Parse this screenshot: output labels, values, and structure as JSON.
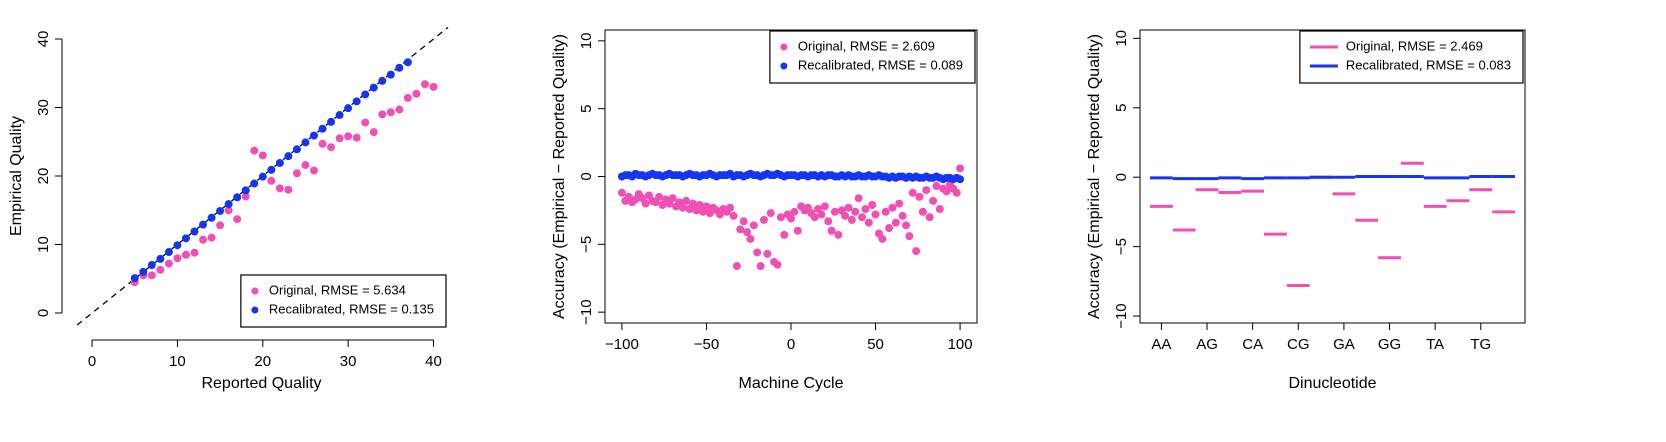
{
  "chart_data": [
    {
      "type": "scatter",
      "xlabel": "Reported Quality",
      "ylabel": "Empirical Quality",
      "xlim": [
        -2,
        41.7
      ],
      "ylim": [
        -1.75,
        41.75
      ],
      "xticks": [
        0,
        10,
        20,
        30,
        40
      ],
      "yticks": [
        0,
        10,
        20,
        30,
        40
      ],
      "diagonal": true,
      "legend": "bottomright",
      "series": [
        {
          "name": "Original, RMSE = 5.634",
          "color": "#f04fb4",
          "x": [
            5,
            6,
            7,
            8,
            9,
            10,
            11,
            12,
            13,
            14,
            15,
            16,
            17,
            18,
            19,
            20,
            21,
            22,
            23,
            24,
            25,
            26,
            27,
            28,
            29,
            30,
            31,
            32,
            33,
            34,
            35,
            36,
            37,
            38,
            39,
            40
          ],
          "values": [
            4.5,
            5.5,
            5.5,
            6.3,
            7.2,
            8,
            8.5,
            8.8,
            10.7,
            11,
            12.8,
            15,
            13.7,
            17,
            23.7,
            23,
            19.3,
            18.2,
            18,
            20.4,
            21.6,
            20.8,
            24.7,
            24.2,
            25.5,
            25.8,
            25.6,
            27.8,
            26.4,
            29,
            29.3,
            29.7,
            31.4,
            32,
            33.4,
            33
          ]
        },
        {
          "name": "Recalibrated, RMSE = 0.135",
          "color": "#1535f0",
          "x": [
            5,
            6,
            7,
            8,
            9,
            10,
            11,
            12,
            13,
            14,
            15,
            16,
            17,
            18,
            19,
            20,
            21,
            22,
            23,
            24,
            25,
            26,
            27,
            28,
            29,
            30,
            31,
            32,
            33,
            34,
            35,
            36,
            37
          ],
          "values": [
            5.1,
            6,
            7,
            7.9,
            8.9,
            9.9,
            10.9,
            11.9,
            12.9,
            13.9,
            14.9,
            15.9,
            16.9,
            17.9,
            18.9,
            19.9,
            20.9,
            21.9,
            22.9,
            23.9,
            24.9,
            25.9,
            26.9,
            27.9,
            28.9,
            29.9,
            30.9,
            31.9,
            32.9,
            33.9,
            34.8,
            35.8,
            36.6
          ]
        }
      ]
    },
    {
      "type": "scatter",
      "xlabel": "Machine Cycle",
      "ylabel": "Accuracy (Empirical − Reported Quality)",
      "xlim": [
        -110,
        110
      ],
      "ylim": [
        -10.8,
        10.8
      ],
      "xticks": [
        {
          "value": -100,
          "label": "−100"
        },
        {
          "value": -50,
          "label": "−50"
        },
        0,
        50,
        100
      ],
      "yticks": [
        {
          "value": -10,
          "label": "−10"
        },
        {
          "value": -5,
          "label": "−5"
        },
        0,
        5,
        10
      ],
      "legend": "topright",
      "x": [
        -100,
        -98,
        -96,
        -94,
        -92,
        -90,
        -88,
        -86,
        -84,
        -82,
        -80,
        -78,
        -76,
        -74,
        -72,
        -70,
        -68,
        -66,
        -64,
        -62,
        -60,
        -58,
        -56,
        -54,
        -52,
        -50,
        -48,
        -46,
        -44,
        -42,
        -40,
        -38,
        -36,
        -34,
        -32,
        -30,
        -28,
        -26,
        -24,
        -22,
        -20,
        -18,
        -16,
        -14,
        -12,
        -10,
        -8,
        -6,
        -4,
        -2,
        0,
        2,
        4,
        6,
        8,
        10,
        12,
        14,
        16,
        18,
        20,
        22,
        24,
        26,
        28,
        30,
        32,
        34,
        36,
        38,
        40,
        42,
        44,
        46,
        48,
        50,
        52,
        54,
        56,
        58,
        60,
        62,
        64,
        66,
        68,
        70,
        72,
        74,
        76,
        78,
        80,
        82,
        84,
        86,
        88,
        90,
        92,
        94,
        96,
        98,
        100
      ],
      "series": [
        {
          "name": "Original, RMSE = 2.609",
          "color": "#f04fb4",
          "values": [
            -1.2,
            -1.8,
            -1.5,
            -1.9,
            -1.7,
            -1.3,
            -1.6,
            -2.0,
            -1.4,
            -1.8,
            -1.9,
            -1.5,
            -2.1,
            -1.7,
            -2.0,
            -1.6,
            -2.2,
            -1.9,
            -2.3,
            -1.8,
            -2.4,
            -2.0,
            -2.5,
            -2.1,
            -2.6,
            -2.2,
            -2.7,
            -2.3,
            -2.5,
            -2.8,
            -2.4,
            -2.6,
            -2.3,
            -2.9,
            -6.6,
            -3.9,
            -3.3,
            -4.1,
            -4.6,
            -3.6,
            -5.6,
            -6.6,
            -3.2,
            -5.7,
            -2.7,
            -6.3,
            -6.5,
            -3.0,
            -4.3,
            -2.8,
            -3.1,
            -2.6,
            -4.0,
            -2.2,
            -2.5,
            -2.3,
            -2.7,
            -3.0,
            -2.4,
            -2.8,
            -2.2,
            -3.3,
            -4.0,
            -2.6,
            -4.3,
            -2.5,
            -2.9,
            -2.3,
            -3.2,
            -2.6,
            -1.6,
            -3.0,
            -2.4,
            -3.4,
            -2.1,
            -2.8,
            -4.2,
            -4.6,
            -2.6,
            -3.8,
            -2.3,
            -3.4,
            -2.0,
            -2.9,
            -3.6,
            -4.4,
            -1.2,
            -5.5,
            -1.5,
            -2.6,
            -1.0,
            -3.0,
            -1.8,
            -0.7,
            -2.4,
            -0.9,
            -1.1,
            -0.6,
            -0.9,
            -1.2,
            0.6
          ]
        },
        {
          "name": "Recalibrated, RMSE = 0.089",
          "color": "#1535f0",
          "values": [
            0.0,
            0.1,
            0.1,
            0.0,
            0.2,
            0.1,
            0.1,
            0.0,
            0.1,
            0.2,
            0.1,
            0.1,
            0.0,
            0.1,
            0.2,
            0.1,
            0.1,
            0.1,
            0.0,
            0.1,
            0.2,
            0.1,
            0.1,
            0.0,
            0.1,
            0.1,
            0.2,
            0.1,
            0.0,
            0.1,
            0.1,
            0.1,
            0.2,
            0.0,
            0.1,
            0.1,
            0.0,
            0.1,
            0.2,
            0.1,
            0.1,
            0.0,
            0.1,
            0.2,
            0.1,
            0.1,
            0.2,
            0.1,
            0.0,
            0.1,
            0.1,
            0.1,
            0.0,
            0.1,
            0.1,
            0.0,
            0.1,
            0.1,
            0.0,
            0.1,
            0.0,
            0.1,
            0.1,
            0.0,
            0.0,
            0.1,
            0.0,
            0.1,
            0.0,
            0.0,
            0.1,
            0.0,
            0.0,
            0.1,
            0.0,
            0.0,
            0.1,
            0.0,
            0.0,
            -0.1,
            0.0,
            -0.1,
            0.0,
            0.0,
            -0.1,
            0.0,
            -0.1,
            0.0,
            -0.1,
            -0.1,
            0.0,
            -0.1,
            -0.1,
            0.0,
            -0.1,
            -0.2,
            -0.1,
            -0.1,
            -0.2,
            -0.1,
            -0.2
          ]
        }
      ]
    },
    {
      "type": "segment",
      "xlabel": "Dinucleotide",
      "ylabel": "Accuracy (Empirical − Reported Quality)",
      "ylim": [
        -10.5,
        10.6
      ],
      "yticks": [
        {
          "value": -10,
          "label": "−10"
        },
        {
          "value": -5,
          "label": "−5"
        },
        0,
        5,
        10
      ],
      "legend": "topright",
      "categories": [
        "AA",
        null,
        "AG",
        null,
        "CA",
        null,
        "CG",
        null,
        "GA",
        null,
        "GG",
        null,
        "TA",
        null,
        "TG",
        null
      ],
      "series": [
        {
          "name": "Original, RMSE = 2.469",
          "color": "#f04fb4",
          "values": [
            -2.1,
            -3.8,
            -0.9,
            -1.1,
            -1.0,
            -4.1,
            -7.8,
            0.0,
            -1.2,
            -3.1,
            -5.8,
            1.0,
            -2.1,
            -1.7,
            -0.9,
            -2.5
          ]
        },
        {
          "name": "Recalibrated, RMSE = 0.083",
          "color": "#1535f0",
          "values": [
            -0.05,
            -0.1,
            -0.1,
            -0.05,
            -0.1,
            -0.05,
            -0.05,
            0.0,
            0.0,
            0.05,
            0.05,
            0.05,
            -0.05,
            -0.05,
            0.05,
            0.05
          ]
        }
      ]
    }
  ]
}
